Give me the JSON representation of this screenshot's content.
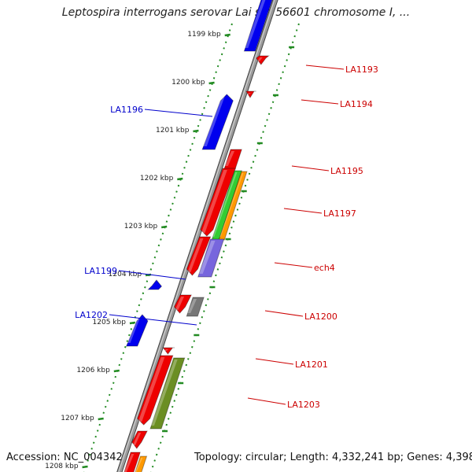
{
  "title": "Leptospira interrogans serovar Lai str. 56601 chromosome I, ...",
  "footer": {
    "accession": "Accession: NC_004342",
    "topology": "Topology: circular; Length: 4,332,241 bp; Genes: 4,398"
  },
  "scale": {
    "unit": "kbp",
    "ticks": [
      "1199 kbp",
      "1200 kbp",
      "1201 kbp",
      "1202 kbp",
      "1203 kbp",
      "1204 kbp",
      "1205 kbp",
      "1206 kbp",
      "1207 kbp",
      "1208 kbp"
    ]
  },
  "colors": {
    "backbone": "#808080",
    "forward_gene": "#ff0000",
    "reverse_gene": "#0000ff",
    "ruler": "#228b22",
    "forward_label": "#cc0000",
    "reverse_label": "#0000cc"
  },
  "genes_forward": [
    {
      "label": "LA1193",
      "strand": "+"
    },
    {
      "label": "LA1194",
      "strand": "+"
    },
    {
      "label": "LA1195",
      "strand": "+"
    },
    {
      "label": "LA1197",
      "strand": "+"
    },
    {
      "label": "ech4",
      "strand": "+"
    },
    {
      "label": "LA1200",
      "strand": "+"
    },
    {
      "label": "LA1201",
      "strand": "+"
    },
    {
      "label": "LA1203",
      "strand": "+"
    }
  ],
  "genes_reverse": [
    {
      "label": "LA1196",
      "strand": "-"
    },
    {
      "label": "LA1199",
      "strand": "-"
    },
    {
      "label": "LA1202",
      "strand": "-"
    }
  ]
}
